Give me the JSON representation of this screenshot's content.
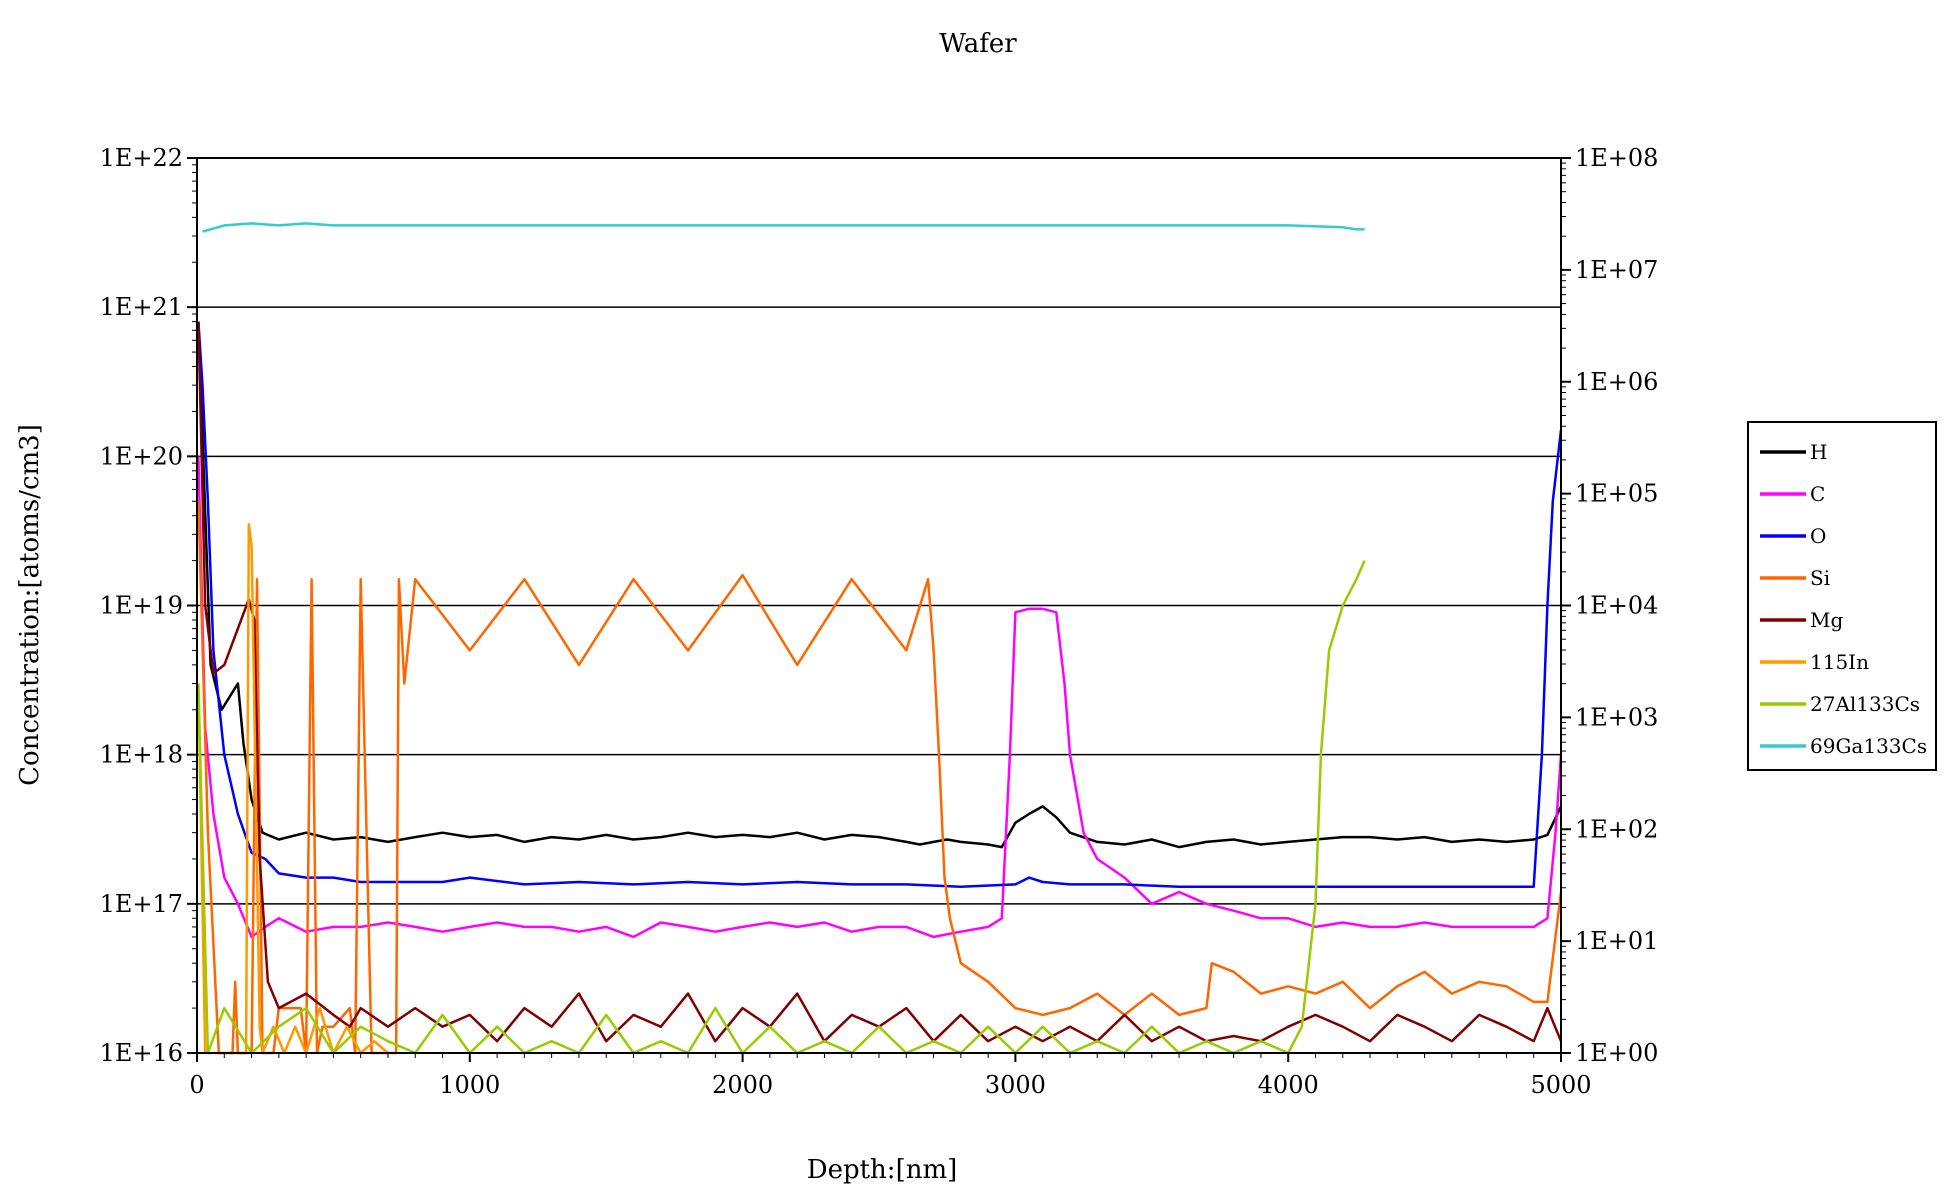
{
  "chart_data": {
    "type": "line",
    "title": "Wafer",
    "xlabel": "Depth:[nm]",
    "ylabel": "Concentration:[atoms/cm3]",
    "y2label": "",
    "xlim": [
      0,
      5000
    ],
    "ylim": [
      1e+16,
      1e+22
    ],
    "y2lim": [
      1,
      100000000.0
    ],
    "yscale": "log",
    "y2scale": "log",
    "grid": "horizontal",
    "legend_position": "right",
    "xticks": [
      "0",
      "1000",
      "2000",
      "3000",
      "4000",
      "5000"
    ],
    "yticks": [
      "1E+16",
      "1E+17",
      "1E+18",
      "1E+19",
      "1E+20",
      "1E+21",
      "1E+22"
    ],
    "y2ticks": [
      "1E+00",
      "1E+01",
      "1E+02",
      "1E+03",
      "1E+04",
      "1E+05",
      "1E+06",
      "1E+07",
      "1E+08"
    ],
    "series": [
      {
        "name": "H",
        "color": "#000000",
        "axis": "left",
        "x": [
          5,
          50,
          90,
          150,
          170,
          200,
          240,
          300,
          400,
          500,
          600,
          700,
          800,
          900,
          1000,
          1100,
          1200,
          1300,
          1400,
          1500,
          1600,
          1700,
          1800,
          1900,
          2000,
          2100,
          2200,
          2300,
          2400,
          2500,
          2600,
          2650,
          2700,
          2750,
          2800,
          2900,
          2950,
          3000,
          3050,
          3100,
          3150,
          3200,
          3300,
          3400,
          3500,
          3600,
          3700,
          3800,
          3900,
          4000,
          4100,
          4200,
          4300,
          4400,
          4500,
          4600,
          4700,
          4800,
          4900,
          4950,
          5000
        ],
        "y": [
          8e+20,
          4e+18,
          2e+18,
          3e+18,
          1.2e+18,
          5e+17,
          3e+17,
          2.7e+17,
          3e+17,
          2.7e+17,
          2.8e+17,
          2.6e+17,
          2.8e+17,
          3e+17,
          2.8e+17,
          2.9e+17,
          2.6e+17,
          2.8e+17,
          2.7e+17,
          2.9e+17,
          2.7e+17,
          2.8e+17,
          3e+17,
          2.8e+17,
          2.9e+17,
          2.8e+17,
          3e+17,
          2.7e+17,
          2.9e+17,
          2.8e+17,
          2.6e+17,
          2.5e+17,
          2.6e+17,
          2.7e+17,
          2.6e+17,
          2.5e+17,
          2.4e+17,
          3.5e+17,
          4e+17,
          4.5e+17,
          3.8e+17,
          3e+17,
          2.6e+17,
          2.5e+17,
          2.7e+17,
          2.4e+17,
          2.6e+17,
          2.7e+17,
          2.5e+17,
          2.6e+17,
          2.7e+17,
          2.8e+17,
          2.8e+17,
          2.7e+17,
          2.8e+17,
          2.6e+17,
          2.7e+17,
          2.6e+17,
          2.7e+17,
          2.9e+17,
          4.5e+17
        ]
      },
      {
        "name": "C",
        "color": "#ff00ff",
        "axis": "left",
        "x": [
          5,
          30,
          60,
          100,
          150,
          200,
          250,
          300,
          400,
          500,
          600,
          700,
          800,
          900,
          1000,
          1100,
          1200,
          1300,
          1400,
          1500,
          1600,
          1700,
          1800,
          1900,
          2000,
          2100,
          2200,
          2300,
          2400,
          2500,
          2600,
          2700,
          2800,
          2900,
          2950,
          2980,
          3000,
          3050,
          3100,
          3150,
          3180,
          3200,
          3250,
          3300,
          3400,
          3500,
          3600,
          3700,
          3800,
          3900,
          4000,
          4100,
          4200,
          4300,
          4400,
          4500,
          4600,
          4700,
          4800,
          4900,
          4950,
          4980,
          5000
        ],
        "y": [
          1e+20,
          1.5e+18,
          4e+17,
          1.5e+17,
          1e+17,
          6e+16,
          7e+16,
          8e+16,
          6.5e+16,
          7e+16,
          7e+16,
          7.5e+16,
          7e+16,
          6.5e+16,
          7e+16,
          7.5e+16,
          7e+16,
          7e+16,
          6.5e+16,
          7e+16,
          6e+16,
          7.5e+16,
          7e+16,
          6.5e+16,
          7e+16,
          7.5e+16,
          7e+16,
          7.5e+16,
          6.5e+16,
          7e+16,
          7e+16,
          6e+16,
          6.5e+16,
          7e+16,
          8e+16,
          1e+18,
          9e+18,
          9.5e+18,
          9.5e+18,
          9e+18,
          3e+18,
          1e+18,
          3e+17,
          2e+17,
          1.5e+17,
          1e+17,
          1.2e+17,
          1e+17,
          9e+16,
          8e+16,
          8e+16,
          7e+16,
          7.5e+16,
          7e+16,
          7e+16,
          7.5e+16,
          7e+16,
          7e+16,
          7e+16,
          7e+16,
          8e+16,
          3e+17,
          1e+18
        ]
      },
      {
        "name": "O",
        "color": "#0000ff",
        "axis": "left",
        "x": [
          5,
          20,
          40,
          60,
          100,
          150,
          200,
          250,
          300,
          400,
          500,
          600,
          700,
          800,
          900,
          1000,
          1200,
          1400,
          1600,
          1800,
          2000,
          2200,
          2400,
          2600,
          2800,
          3000,
          3050,
          3100,
          3200,
          3400,
          3600,
          3800,
          4000,
          4200,
          4400,
          4600,
          4800,
          4900,
          4930,
          4950,
          4970,
          5000
        ],
        "y": [
          8e+20,
          3e+20,
          5e+19,
          5e+18,
          1e+18,
          4e+17,
          2.2e+17,
          2e+17,
          1.6e+17,
          1.5e+17,
          1.5e+17,
          1.4e+17,
          1.4e+17,
          1.4e+17,
          1.4e+17,
          1.5e+17,
          1.35e+17,
          1.4e+17,
          1.35e+17,
          1.4e+17,
          1.35e+17,
          1.4e+17,
          1.35e+17,
          1.35e+17,
          1.3e+17,
          1.35e+17,
          1.5e+17,
          1.4e+17,
          1.35e+17,
          1.35e+17,
          1.3e+17,
          1.3e+17,
          1.3e+17,
          1.3e+17,
          1.3e+17,
          1.3e+17,
          1.3e+17,
          1.3e+17,
          1e+18,
          1e+19,
          5e+19,
          1.5e+20
        ]
      },
      {
        "name": "Si",
        "color": "#ff6600",
        "axis": "left",
        "x": [
          5,
          40,
          80,
          100,
          130,
          140,
          150,
          170,
          180,
          200,
          220,
          240,
          260,
          280,
          300,
          340,
          380,
          400,
          420,
          440,
          460,
          500,
          560,
          580,
          600,
          640,
          700,
          730,
          740,
          760,
          800,
          1000,
          1200,
          1400,
          1600,
          1800,
          2000,
          2200,
          2400,
          2600,
          2680,
          2700,
          2720,
          2740,
          2760,
          2800,
          2900,
          3000,
          3100,
          3200,
          3300,
          3400,
          3500,
          3600,
          3700,
          3720,
          3800,
          3900,
          4000,
          4100,
          4200,
          4300,
          4400,
          4500,
          4600,
          4700,
          4800,
          4900,
          4950,
          5000
        ],
        "y": [
          5e+19,
          3e+17,
          1e+16,
          1e+16,
          1e+16,
          3e+16,
          1e+16,
          1e+16,
          1e+16,
          1e+16,
          1.5e+19,
          1e+16,
          1e+16,
          1e+16,
          2e+16,
          2e+16,
          2e+16,
          1e+16,
          1.5e+19,
          1e+16,
          1.5e+16,
          1.5e+16,
          2e+16,
          1e+16,
          1.5e+19,
          1e+16,
          1e+16,
          1e+16,
          1.5e+19,
          3e+18,
          1.5e+19,
          5e+18,
          1.5e+19,
          4e+18,
          1.5e+19,
          5e+18,
          1.6e+19,
          4e+18,
          1.5e+19,
          5e+18,
          1.5e+19,
          5e+18,
          1e+18,
          1.5e+17,
          8e+16,
          4e+16,
          3e+16,
          2e+16,
          1.8e+16,
          2e+16,
          2.5e+16,
          1.8e+16,
          2.5e+16,
          1.8e+16,
          2e+16,
          4e+16,
          3.5e+16,
          2.5e+16,
          2.8e+16,
          2.5e+16,
          3e+16,
          2e+16,
          2.8e+16,
          3.5e+16,
          2.5e+16,
          3e+16,
          2.8e+16,
          2.2e+16,
          2.2e+16,
          1.2e+17
        ]
      },
      {
        "name": "Mg",
        "color": "#800000",
        "axis": "left",
        "x": [
          5,
          30,
          60,
          100,
          150,
          190,
          210,
          230,
          260,
          300,
          400,
          500,
          560,
          600,
          700,
          800,
          900,
          1000,
          1100,
          1200,
          1300,
          1400,
          1500,
          1600,
          1700,
          1800,
          1900,
          2000,
          2100,
          2200,
          2300,
          2400,
          2500,
          2600,
          2700,
          2800,
          2900,
          3000,
          3100,
          3200,
          3300,
          3400,
          3500,
          3600,
          3700,
          3800,
          3900,
          4000,
          4100,
          4200,
          4300,
          4400,
          4500,
          4600,
          4700,
          4800,
          4900,
          4950,
          5000
        ],
        "y": [
          8e+20,
          1e+19,
          3.5e+18,
          4e+18,
          7e+18,
          1.1e+19,
          8e+18,
          2e+17,
          3e+16,
          2e+16,
          2.5e+16,
          1.8e+16,
          1.5e+16,
          2e+16,
          1.5e+16,
          2e+16,
          1.5e+16,
          1.8e+16,
          1.2e+16,
          2e+16,
          1.5e+16,
          2.5e+16,
          1.2e+16,
          1.8e+16,
          1.5e+16,
          2.5e+16,
          1.2e+16,
          2e+16,
          1.5e+16,
          2.5e+16,
          1.2e+16,
          1.8e+16,
          1.5e+16,
          2e+16,
          1.2e+16,
          1.8e+16,
          1.2e+16,
          1.5e+16,
          1.2e+16,
          1.5e+16,
          1.2e+16,
          1.8e+16,
          1.2e+16,
          1.5e+16,
          1.2e+16,
          1.3e+16,
          1.2e+16,
          1.5e+16,
          1.8e+16,
          1.5e+16,
          1.2e+16,
          1.8e+16,
          1.5e+16,
          1.2e+16,
          1.8e+16,
          1.5e+16,
          1.2e+16,
          2e+16,
          1.2e+16
        ]
      },
      {
        "name": "115In",
        "color": "#ff9900",
        "axis": "left",
        "x": [
          5,
          30,
          60,
          100,
          150,
          180,
          190,
          200,
          230,
          240,
          280,
          320,
          360,
          400,
          450,
          500,
          550,
          600,
          650,
          700
        ],
        "y": [
          3e+18,
          1e+16,
          1e+16,
          1e+16,
          1e+16,
          1e+16,
          3.5e+19,
          2.5e+19,
          1.5e+16,
          1e+16,
          1.5e+16,
          1e+16,
          1.5e+16,
          1e+16,
          2e+16,
          1e+16,
          1.5e+16,
          1e+16,
          1.2e+16,
          1e+16
        ]
      },
      {
        "name": "27Al133Cs",
        "color": "#99cc00",
        "axis": "left",
        "x": [
          5,
          40,
          100,
          200,
          300,
          400,
          500,
          600,
          700,
          800,
          900,
          1000,
          1100,
          1200,
          1300,
          1400,
          1500,
          1600,
          1700,
          1800,
          1900,
          2000,
          2100,
          2200,
          2300,
          2400,
          2500,
          2600,
          2700,
          2800,
          2900,
          3000,
          3100,
          3200,
          3300,
          3400,
          3500,
          3600,
          3700,
          3800,
          3900,
          4000,
          4050,
          4100,
          4120,
          4150,
          4200,
          4250,
          4280
        ],
        "y": [
          3e+18,
          1e+16,
          2e+16,
          1e+16,
          1.5e+16,
          2e+16,
          1e+16,
          1.5e+16,
          1.2e+16,
          1e+16,
          1.8e+16,
          1e+16,
          1.5e+16,
          1e+16,
          1.2e+16,
          1e+16,
          1.8e+16,
          1e+16,
          1.2e+16,
          1e+16,
          2e+16,
          1e+16,
          1.5e+16,
          1e+16,
          1.2e+16,
          1e+16,
          1.5e+16,
          1e+16,
          1.2e+16,
          1e+16,
          1.5e+16,
          1e+16,
          1.5e+16,
          1e+16,
          1.2e+16,
          1e+16,
          1.5e+16,
          1e+16,
          1.2e+16,
          1e+16,
          1.2e+16,
          1e+16,
          1.5e+16,
          1e+17,
          1e+18,
          5e+18,
          1e+19,
          1.5e+19,
          2e+19
        ]
      },
      {
        "name": "69Ga133Cs",
        "color": "#33cccc",
        "axis": "right",
        "x": [
          20,
          100,
          200,
          300,
          400,
          500,
          1000,
          2000,
          3000,
          4000,
          4200,
          4250,
          4280
        ],
        "y": [
          22000000.0,
          25000000.0,
          26000000.0,
          25000000.0,
          26000000.0,
          25000000.0,
          25000000.0,
          25000000.0,
          25000000.0,
          25000000.0,
          24000000.0,
          23000000.0,
          23000000.0
        ]
      }
    ]
  }
}
